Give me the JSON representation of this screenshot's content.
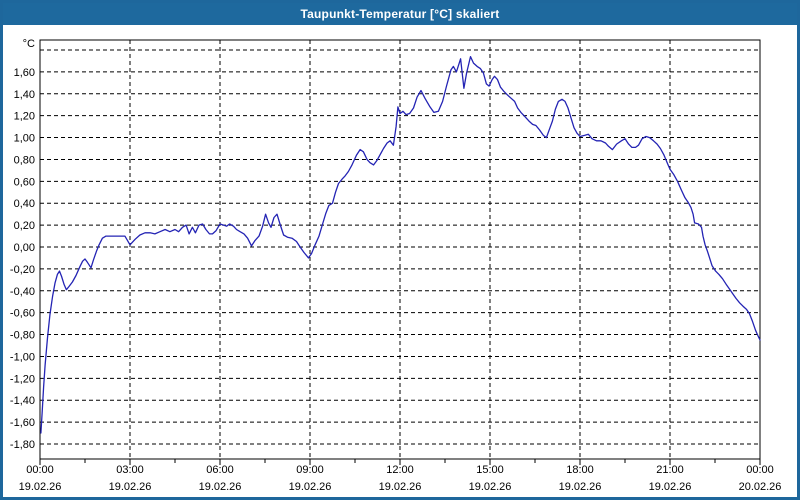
{
  "window": {
    "title": "Taupunkt-Temperatur [°C] skaliert",
    "titlebar_color": "#1e699e",
    "border_color": "#1e679c",
    "background_color": "#ffffff"
  },
  "chart_data": {
    "type": "line",
    "title": "Taupunkt-Temperatur [°C] skaliert",
    "legend": "none",
    "grid": "dashed-black",
    "line_color": "#2424b4",
    "grid_color": "#000000",
    "frame_color": "#000000",
    "y_axis": {
      "unit_label": "°C",
      "tick_step": 0.2,
      "grid_min": -1.8,
      "grid_max": 1.8,
      "label_min": -1.8,
      "label_max": 1.6,
      "decimal_separator": ","
    },
    "x_axis": {
      "hours_span": 24,
      "major_tick_hours": 3,
      "minor_tick_hours": 1.5,
      "ticks": [
        {
          "hour": 0,
          "time": "00:00",
          "date": "19.02.26"
        },
        {
          "hour": 3,
          "time": "03:00",
          "date": "19.02.26"
        },
        {
          "hour": 6,
          "time": "06:00",
          "date": "19.02.26"
        },
        {
          "hour": 9,
          "time": "09:00",
          "date": "19.02.26"
        },
        {
          "hour": 12,
          "time": "12:00",
          "date": "19.02.26"
        },
        {
          "hour": 15,
          "time": "15:00",
          "date": "19.02.26"
        },
        {
          "hour": 18,
          "time": "18:00",
          "date": "19.02.26"
        },
        {
          "hour": 21,
          "time": "21:00",
          "date": "19.02.26"
        },
        {
          "hour": 24,
          "time": "00:00",
          "date": "20.02.26"
        }
      ]
    },
    "series": [
      {
        "name": "Taupunkt-Temperatur",
        "unit": "°C",
        "points": [
          [
            0.03,
            -1.7
          ],
          [
            0.07,
            -1.52
          ],
          [
            0.12,
            -1.28
          ],
          [
            0.17,
            -1.08
          ],
          [
            0.25,
            -0.83
          ],
          [
            0.33,
            -0.62
          ],
          [
            0.42,
            -0.45
          ],
          [
            0.5,
            -0.33
          ],
          [
            0.58,
            -0.25
          ],
          [
            0.65,
            -0.22
          ],
          [
            0.72,
            -0.27
          ],
          [
            0.8,
            -0.34
          ],
          [
            0.88,
            -0.39
          ],
          [
            0.97,
            -0.36
          ],
          [
            1.08,
            -0.32
          ],
          [
            1.2,
            -0.26
          ],
          [
            1.33,
            -0.18
          ],
          [
            1.42,
            -0.13
          ],
          [
            1.5,
            -0.11
          ],
          [
            1.58,
            -0.14
          ],
          [
            1.7,
            -0.19
          ],
          [
            1.78,
            -0.12
          ],
          [
            1.88,
            -0.04
          ],
          [
            1.97,
            0.02
          ],
          [
            2.08,
            0.08
          ],
          [
            2.2,
            0.1
          ],
          [
            2.5,
            0.1
          ],
          [
            2.83,
            0.1
          ],
          [
            3.0,
            0.02
          ],
          [
            3.17,
            0.07
          ],
          [
            3.33,
            0.11
          ],
          [
            3.5,
            0.13
          ],
          [
            3.67,
            0.13
          ],
          [
            3.83,
            0.12
          ],
          [
            4.0,
            0.14
          ],
          [
            4.17,
            0.16
          ],
          [
            4.33,
            0.14
          ],
          [
            4.5,
            0.16
          ],
          [
            4.62,
            0.14
          ],
          [
            4.75,
            0.18
          ],
          [
            4.87,
            0.2
          ],
          [
            4.97,
            0.12
          ],
          [
            5.08,
            0.18
          ],
          [
            5.18,
            0.13
          ],
          [
            5.3,
            0.2
          ],
          [
            5.42,
            0.21
          ],
          [
            5.53,
            0.16
          ],
          [
            5.65,
            0.12
          ],
          [
            5.75,
            0.12
          ],
          [
            5.87,
            0.15
          ],
          [
            6.0,
            0.21
          ],
          [
            6.12,
            0.2
          ],
          [
            6.22,
            0.19
          ],
          [
            6.32,
            0.21
          ],
          [
            6.45,
            0.19
          ],
          [
            6.55,
            0.16
          ],
          [
            6.67,
            0.14
          ],
          [
            6.8,
            0.12
          ],
          [
            6.92,
            0.08
          ],
          [
            7.05,
            0.01
          ],
          [
            7.17,
            0.06
          ],
          [
            7.3,
            0.1
          ],
          [
            7.42,
            0.19
          ],
          [
            7.52,
            0.3
          ],
          [
            7.62,
            0.22
          ],
          [
            7.7,
            0.18
          ],
          [
            7.8,
            0.27
          ],
          [
            7.9,
            0.3
          ],
          [
            8.0,
            0.21
          ],
          [
            8.12,
            0.11
          ],
          [
            8.25,
            0.09
          ],
          [
            8.4,
            0.08
          ],
          [
            8.55,
            0.05
          ],
          [
            8.67,
            0.0
          ],
          [
            8.8,
            -0.05
          ],
          [
            8.95,
            -0.1
          ],
          [
            9.05,
            -0.06
          ],
          [
            9.17,
            0.02
          ],
          [
            9.3,
            0.1
          ],
          [
            9.42,
            0.21
          ],
          [
            9.53,
            0.31
          ],
          [
            9.63,
            0.38
          ],
          [
            9.75,
            0.4
          ],
          [
            9.85,
            0.5
          ],
          [
            9.95,
            0.58
          ],
          [
            10.07,
            0.62
          ],
          [
            10.17,
            0.65
          ],
          [
            10.28,
            0.69
          ],
          [
            10.4,
            0.75
          ],
          [
            10.55,
            0.84
          ],
          [
            10.67,
            0.89
          ],
          [
            10.78,
            0.87
          ],
          [
            10.9,
            0.8
          ],
          [
            11.0,
            0.77
          ],
          [
            11.12,
            0.75
          ],
          [
            11.23,
            0.79
          ],
          [
            11.33,
            0.84
          ],
          [
            11.45,
            0.9
          ],
          [
            11.57,
            0.95
          ],
          [
            11.67,
            0.97
          ],
          [
            11.78,
            0.93
          ],
          [
            11.87,
            1.1
          ],
          [
            11.93,
            1.28
          ],
          [
            12.0,
            1.22
          ],
          [
            12.1,
            1.24
          ],
          [
            12.2,
            1.21
          ],
          [
            12.32,
            1.22
          ],
          [
            12.45,
            1.27
          ],
          [
            12.57,
            1.37
          ],
          [
            12.7,
            1.43
          ],
          [
            12.83,
            1.36
          ],
          [
            13.0,
            1.28
          ],
          [
            13.13,
            1.23
          ],
          [
            13.28,
            1.24
          ],
          [
            13.42,
            1.33
          ],
          [
            13.55,
            1.47
          ],
          [
            13.7,
            1.62
          ],
          [
            13.78,
            1.65
          ],
          [
            13.88,
            1.6
          ],
          [
            14.02,
            1.72
          ],
          [
            14.13,
            1.45
          ],
          [
            14.22,
            1.59
          ],
          [
            14.35,
            1.74
          ],
          [
            14.45,
            1.68
          ],
          [
            14.57,
            1.65
          ],
          [
            14.68,
            1.63
          ],
          [
            14.78,
            1.59
          ],
          [
            14.88,
            1.49
          ],
          [
            14.97,
            1.47
          ],
          [
            15.07,
            1.53
          ],
          [
            15.15,
            1.56
          ],
          [
            15.25,
            1.53
          ],
          [
            15.35,
            1.46
          ],
          [
            15.47,
            1.42
          ],
          [
            15.58,
            1.39
          ],
          [
            15.7,
            1.36
          ],
          [
            15.82,
            1.33
          ],
          [
            15.92,
            1.27
          ],
          [
            16.03,
            1.23
          ],
          [
            16.17,
            1.19
          ],
          [
            16.3,
            1.15
          ],
          [
            16.42,
            1.12
          ],
          [
            16.53,
            1.11
          ],
          [
            16.65,
            1.07
          ],
          [
            16.78,
            1.02
          ],
          [
            16.88,
            1.0
          ],
          [
            17.0,
            1.09
          ],
          [
            17.08,
            1.15
          ],
          [
            17.18,
            1.26
          ],
          [
            17.28,
            1.33
          ],
          [
            17.4,
            1.35
          ],
          [
            17.5,
            1.33
          ],
          [
            17.6,
            1.27
          ],
          [
            17.7,
            1.18
          ],
          [
            17.8,
            1.09
          ],
          [
            17.9,
            1.04
          ],
          [
            18.0,
            1.01
          ],
          [
            18.15,
            1.02
          ],
          [
            18.28,
            1.03
          ],
          [
            18.4,
            0.99
          ],
          [
            18.55,
            0.97
          ],
          [
            18.7,
            0.97
          ],
          [
            18.85,
            0.95
          ],
          [
            18.95,
            0.92
          ],
          [
            19.08,
            0.89
          ],
          [
            19.22,
            0.94
          ],
          [
            19.38,
            0.97
          ],
          [
            19.5,
            0.99
          ],
          [
            19.62,
            0.94
          ],
          [
            19.73,
            0.91
          ],
          [
            19.85,
            0.91
          ],
          [
            19.95,
            0.93
          ],
          [
            20.07,
            0.99
          ],
          [
            20.2,
            1.01
          ],
          [
            20.32,
            1.0
          ],
          [
            20.45,
            0.97
          ],
          [
            20.57,
            0.94
          ],
          [
            20.68,
            0.9
          ],
          [
            20.8,
            0.84
          ],
          [
            20.92,
            0.76
          ],
          [
            21.0,
            0.71
          ],
          [
            21.13,
            0.66
          ],
          [
            21.25,
            0.6
          ],
          [
            21.38,
            0.52
          ],
          [
            21.5,
            0.45
          ],
          [
            21.6,
            0.41
          ],
          [
            21.7,
            0.36
          ],
          [
            21.77,
            0.3
          ],
          [
            21.82,
            0.22
          ],
          [
            21.95,
            0.21
          ],
          [
            22.05,
            0.18
          ],
          [
            22.1,
            0.1
          ],
          [
            22.17,
            0.02
          ],
          [
            22.25,
            -0.04
          ],
          [
            22.32,
            -0.1
          ],
          [
            22.4,
            -0.17
          ],
          [
            22.52,
            -0.22
          ],
          [
            22.63,
            -0.25
          ],
          [
            22.75,
            -0.29
          ],
          [
            22.87,
            -0.34
          ],
          [
            23.0,
            -0.39
          ],
          [
            23.1,
            -0.43
          ],
          [
            23.2,
            -0.47
          ],
          [
            23.32,
            -0.51
          ],
          [
            23.43,
            -0.54
          ],
          [
            23.55,
            -0.57
          ],
          [
            23.65,
            -0.61
          ],
          [
            23.75,
            -0.68
          ],
          [
            23.85,
            -0.76
          ],
          [
            23.93,
            -0.81
          ],
          [
            24.0,
            -0.85
          ]
        ]
      }
    ]
  }
}
